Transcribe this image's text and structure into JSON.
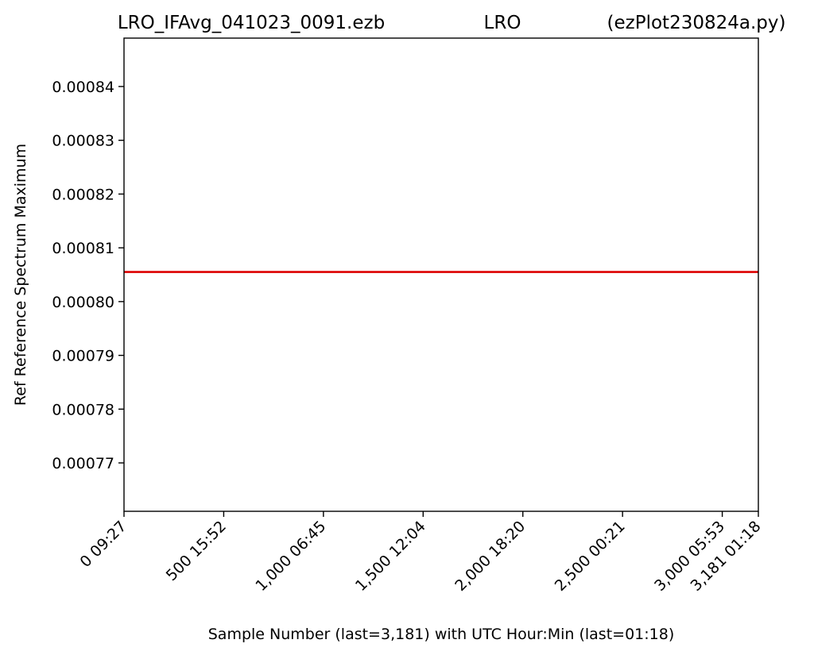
{
  "titles": {
    "left": "LRO_IFAvg_041023_0091.ezb",
    "center": "LRO",
    "right": "(ezPlot230824a.py)"
  },
  "chart_data": {
    "type": "line",
    "xlabel": "Sample Number (last=3,181) with UTC Hour:Min (last=01:18)",
    "ylabel": "Ref Reference Spectrum Maximum",
    "xlim": [
      0,
      3181
    ],
    "ylim": [
      0.000761,
      0.000849
    ],
    "x_ticks": [
      {
        "value": 0,
        "label": "0  09:27"
      },
      {
        "value": 500,
        "label": "500  15:52"
      },
      {
        "value": 1000,
        "label": "1,000  06:45"
      },
      {
        "value": 1500,
        "label": "1,500  12:04"
      },
      {
        "value": 2000,
        "label": "2,000  18:20"
      },
      {
        "value": 2500,
        "label": "2,500  00:21"
      },
      {
        "value": 3000,
        "label": "3,000  05:53"
      },
      {
        "value": 3181,
        "label": "3,181  01:18"
      }
    ],
    "y_ticks": [
      {
        "value": 0.00077,
        "label": "0.00077"
      },
      {
        "value": 0.00078,
        "label": "0.00078"
      },
      {
        "value": 0.00079,
        "label": "0.00079"
      },
      {
        "value": 0.0008,
        "label": "0.00080"
      },
      {
        "value": 0.00081,
        "label": "0.00081"
      },
      {
        "value": 0.00082,
        "label": "0.00082"
      },
      {
        "value": 0.00083,
        "label": "0.00083"
      },
      {
        "value": 0.00084,
        "label": "0.00084"
      }
    ],
    "grid": false,
    "series": [
      {
        "color": "#dd0000",
        "x": [
          0,
          3181
        ],
        "y": [
          0.0008055,
          0.0008055
        ]
      }
    ]
  }
}
